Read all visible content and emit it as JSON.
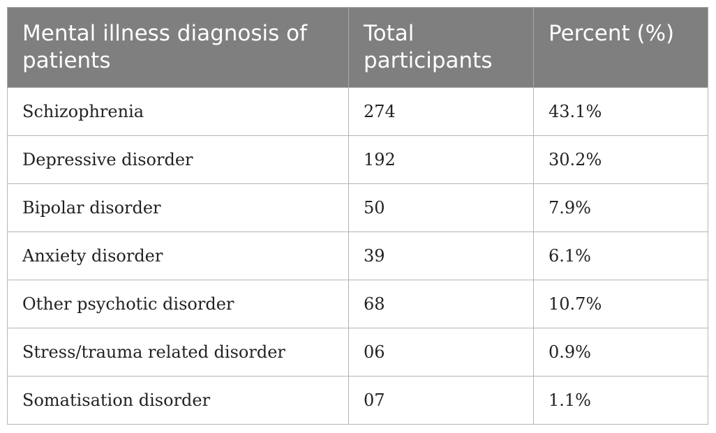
{
  "table": {
    "headers": [
      "Mental illness diagnosis of patients",
      "Total participants",
      "Percent (%)"
    ],
    "rows": [
      [
        "Schizophrenia",
        "274",
        "43.1%"
      ],
      [
        "Depressive disorder",
        "192",
        "30.2%"
      ],
      [
        "Bipolar disorder",
        "50",
        "7.9%"
      ],
      [
        "Anxiety disorder",
        "39",
        "6.1%"
      ],
      [
        "Other psychotic disorder",
        "68",
        "10.7%"
      ],
      [
        "Stress/trauma related disorder",
        "06",
        "0.9%"
      ],
      [
        "Somatisation disorder",
        "07",
        "1.1%"
      ]
    ]
  }
}
